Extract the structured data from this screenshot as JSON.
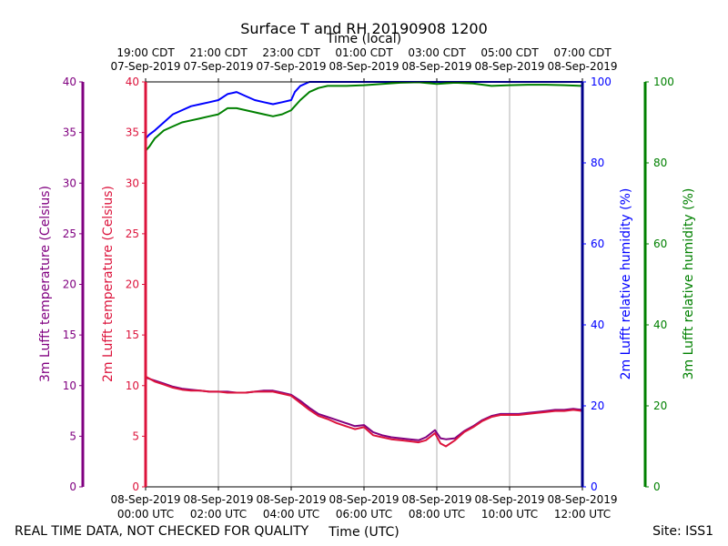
{
  "chart_data": {
    "type": "line",
    "title": "Surface T and RH 20190908 1200",
    "top_axis_label": "Time (local)",
    "xlabel": "Time (UTC)",
    "x_range_hours": [
      0,
      12
    ],
    "x_ticks_utc": [
      {
        "h": 0,
        "date": "08-Sep-2019",
        "time": "00:00 UTC"
      },
      {
        "h": 2,
        "date": "08-Sep-2019",
        "time": "02:00 UTC"
      },
      {
        "h": 4,
        "date": "08-Sep-2019",
        "time": "04:00 UTC"
      },
      {
        "h": 6,
        "date": "08-Sep-2019",
        "time": "06:00 UTC"
      },
      {
        "h": 8,
        "date": "08-Sep-2019",
        "time": "08:00 UTC"
      },
      {
        "h": 10,
        "date": "08-Sep-2019",
        "time": "10:00 UTC"
      },
      {
        "h": 12,
        "date": "08-Sep-2019",
        "time": "12:00 UTC"
      }
    ],
    "x_ticks_local": [
      {
        "h": 0,
        "time": "19:00 CDT",
        "date": "07-Sep-2019"
      },
      {
        "h": 2,
        "time": "21:00 CDT",
        "date": "07-Sep-2019"
      },
      {
        "h": 4,
        "time": "23:00 CDT",
        "date": "07-Sep-2019"
      },
      {
        "h": 6,
        "time": "01:00 CDT",
        "date": "08-Sep-2019"
      },
      {
        "h": 8,
        "time": "03:00 CDT",
        "date": "08-Sep-2019"
      },
      {
        "h": 10,
        "time": "05:00 CDT",
        "date": "08-Sep-2019"
      },
      {
        "h": 12,
        "time": "07:00 CDT",
        "date": "08-Sep-2019"
      }
    ],
    "temp_range": [
      0,
      40
    ],
    "temp_ticks": [
      0,
      5,
      10,
      15,
      20,
      25,
      30,
      35,
      40
    ],
    "rh_range": [
      0,
      100
    ],
    "rh_ticks": [
      0,
      20,
      40,
      60,
      80,
      100
    ],
    "axes": {
      "temp_3m_label": "3m Lufft temperature (Celsius)",
      "temp_2m_label": "2m Lufft temperature (Celsius)",
      "rh_2m_label": "2m Lufft relative humidity (%)",
      "rh_3m_label": "3m Lufft relative humidity (%)"
    },
    "grid": "vertical",
    "colors": {
      "temp_3m": "#800080",
      "temp_2m": "#dc143c",
      "rh_2m": "#0000ff",
      "rh_3m": "#008000",
      "rh_2m_spine": "#00008b",
      "grid": "#b0b0b0"
    },
    "series": [
      {
        "key": "temp_3m",
        "axis": "temp",
        "x": [
          0,
          0.25,
          0.5,
          0.75,
          1.0,
          1.25,
          1.5,
          1.75,
          2.0,
          2.25,
          2.5,
          2.75,
          3.0,
          3.25,
          3.5,
          3.75,
          4.0,
          4.25,
          4.5,
          4.75,
          5.0,
          5.25,
          5.5,
          5.75,
          6.0,
          6.25,
          6.5,
          6.75,
          7.0,
          7.25,
          7.5,
          7.7,
          7.95,
          8.1,
          8.25,
          8.5,
          8.75,
          9.0,
          9.25,
          9.5,
          9.75,
          10.0,
          10.25,
          10.5,
          10.75,
          11.0,
          11.25,
          11.5,
          11.75,
          12.0
        ],
        "y": [
          10.8,
          10.5,
          10.2,
          9.9,
          9.7,
          9.6,
          9.5,
          9.4,
          9.4,
          9.4,
          9.3,
          9.3,
          9.4,
          9.5,
          9.5,
          9.3,
          9.1,
          8.5,
          7.8,
          7.2,
          6.9,
          6.6,
          6.3,
          6.0,
          6.1,
          5.4,
          5.1,
          4.9,
          4.8,
          4.7,
          4.6,
          4.9,
          5.6,
          4.8,
          4.7,
          4.8,
          5.5,
          6.0,
          6.6,
          7.0,
          7.2,
          7.2,
          7.2,
          7.3,
          7.4,
          7.5,
          7.6,
          7.6,
          7.7,
          7.6
        ]
      },
      {
        "key": "temp_2m",
        "axis": "temp",
        "x": [
          0,
          0.25,
          0.5,
          0.75,
          1.0,
          1.25,
          1.5,
          1.75,
          2.0,
          2.25,
          2.5,
          2.75,
          3.0,
          3.25,
          3.5,
          3.75,
          4.0,
          4.25,
          4.5,
          4.75,
          5.0,
          5.25,
          5.5,
          5.75,
          6.0,
          6.25,
          6.5,
          6.75,
          7.0,
          7.25,
          7.5,
          7.7,
          7.95,
          8.1,
          8.25,
          8.5,
          8.75,
          9.0,
          9.25,
          9.5,
          9.75,
          10.0,
          10.25,
          10.5,
          10.75,
          11.0,
          11.25,
          11.5,
          11.75,
          12.0
        ],
        "y": [
          10.9,
          10.4,
          10.1,
          9.8,
          9.6,
          9.5,
          9.5,
          9.4,
          9.4,
          9.3,
          9.3,
          9.3,
          9.4,
          9.4,
          9.4,
          9.2,
          9.0,
          8.3,
          7.6,
          7.0,
          6.7,
          6.3,
          6.0,
          5.7,
          5.9,
          5.1,
          4.9,
          4.7,
          4.6,
          4.5,
          4.4,
          4.6,
          5.3,
          4.3,
          4.0,
          4.6,
          5.4,
          5.9,
          6.5,
          6.9,
          7.1,
          7.1,
          7.1,
          7.2,
          7.3,
          7.4,
          7.5,
          7.5,
          7.6,
          7.5
        ]
      },
      {
        "key": "rh_2m",
        "axis": "rh",
        "x": [
          0,
          0.1,
          0.25,
          0.5,
          0.75,
          1.0,
          1.25,
          1.5,
          1.75,
          2.0,
          2.25,
          2.5,
          2.75,
          3.0,
          3.25,
          3.5,
          3.75,
          4.0,
          4.1,
          4.25,
          4.5,
          4.75,
          5.0,
          6.0,
          7.0,
          8.0,
          9.0,
          10.0,
          11.0,
          12.0
        ],
        "y": [
          86,
          87,
          88,
          90,
          92,
          93,
          94,
          94.5,
          95,
          95.5,
          97,
          97.5,
          96.5,
          95.5,
          95,
          94.5,
          95,
          95.5,
          97.5,
          99,
          100,
          100,
          100,
          100,
          100,
          100,
          100,
          100,
          100,
          100
        ]
      },
      {
        "key": "rh_3m",
        "axis": "rh",
        "x": [
          0,
          0.1,
          0.25,
          0.5,
          0.75,
          1.0,
          1.25,
          1.5,
          1.75,
          2.0,
          2.25,
          2.5,
          2.75,
          3.0,
          3.25,
          3.5,
          3.75,
          4.0,
          4.25,
          4.5,
          4.75,
          5.0,
          5.5,
          6.0,
          6.5,
          7.0,
          7.5,
          8.0,
          8.5,
          9.0,
          9.5,
          10.0,
          10.5,
          11.0,
          11.5,
          12.0
        ],
        "y": [
          83,
          84,
          86,
          88,
          89,
          90,
          90.5,
          91,
          91.5,
          92,
          93.5,
          93.5,
          93,
          92.5,
          92,
          91.5,
          92,
          93,
          95.5,
          97.5,
          98.5,
          99,
          99,
          99.2,
          99.5,
          99.8,
          99.9,
          99.5,
          99.8,
          99.6,
          99.0,
          99.2,
          99.3,
          99.3,
          99.2,
          99.0
        ]
      }
    ]
  },
  "footer": {
    "left": "REAL TIME DATA, NOT CHECKED FOR QUALITY",
    "right": "Site: ISS1"
  }
}
